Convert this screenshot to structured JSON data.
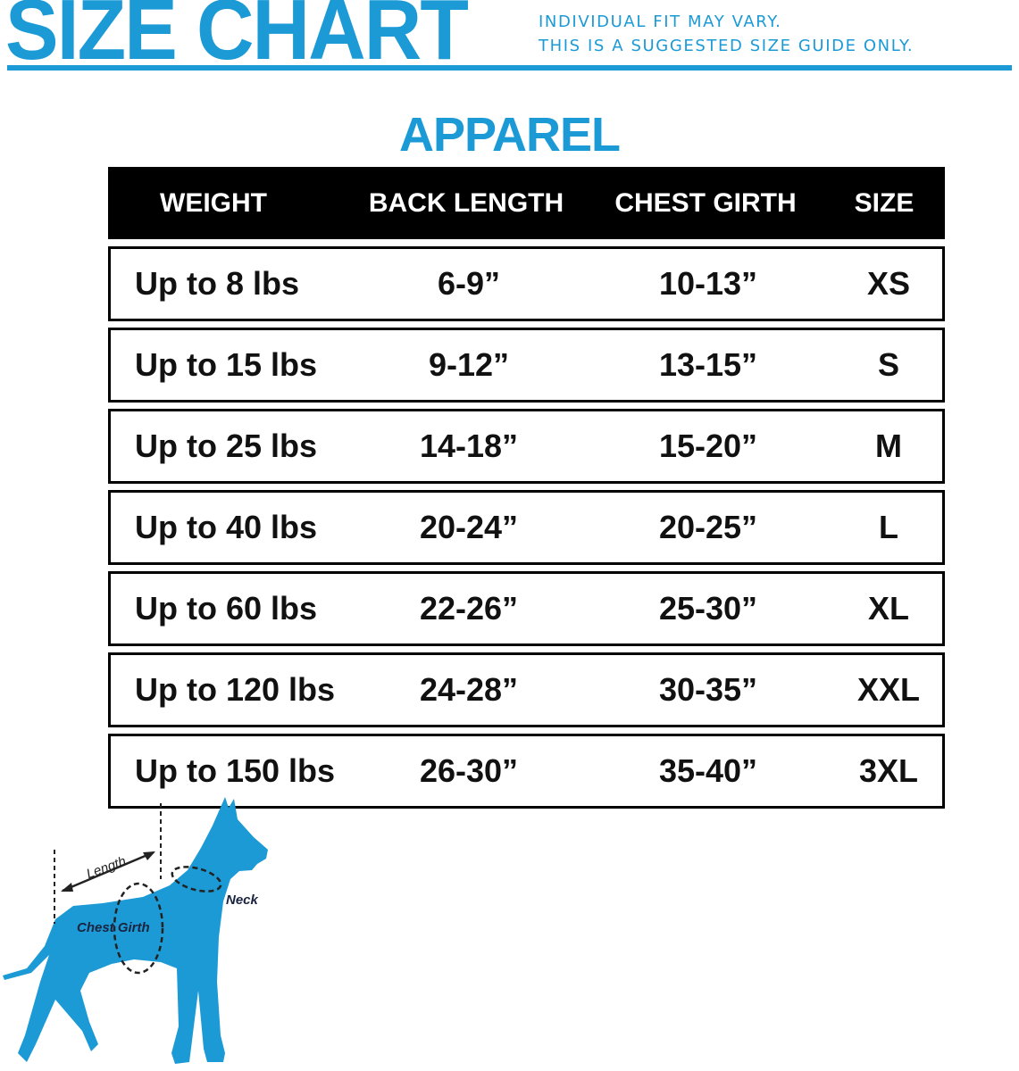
{
  "header": {
    "title": "SIZE CHART",
    "notes": [
      "INDIVIDUAL FIT MAY VARY.",
      "THIS IS A SUGGESTED SIZE GUIDE ONLY."
    ]
  },
  "section_title": "APPAREL",
  "table": {
    "columns": [
      "WEIGHT",
      "BACK LENGTH",
      "CHEST GIRTH",
      "SIZE"
    ],
    "rows": [
      [
        "Up to 8 lbs",
        "6-9”",
        "10-13”",
        "XS"
      ],
      [
        "Up to 15 lbs",
        "9-12”",
        "13-15”",
        "S"
      ],
      [
        "Up to 25 lbs",
        "14-18”",
        "15-20”",
        "M"
      ],
      [
        "Up to 40 lbs",
        "20-24”",
        "20-25”",
        "L"
      ],
      [
        "Up to 60 lbs",
        "22-26”",
        "25-30”",
        "XL"
      ],
      [
        "Up to 120 lbs",
        "24-28”",
        "30-35”",
        "XXL"
      ],
      [
        "Up to 150 lbs",
        "26-30”",
        "35-40”",
        "3XL"
      ]
    ]
  },
  "diagram": {
    "labels": {
      "length": "Length",
      "chest": "Chest Girth",
      "neck": "Neck"
    }
  },
  "colors": {
    "brand_blue": "#1b9ad6",
    "header_bg": "#000000"
  }
}
